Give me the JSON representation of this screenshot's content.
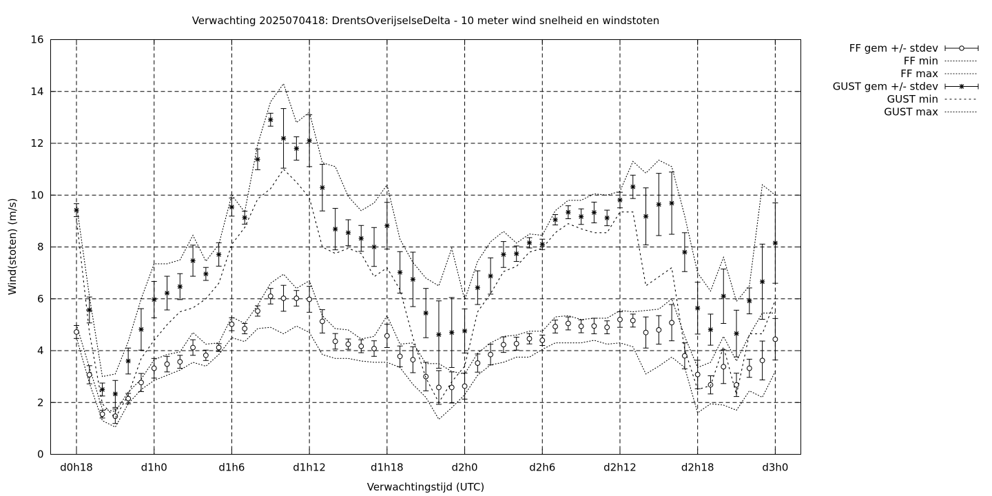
{
  "chart_data": {
    "type": "line",
    "title": "Verwachting 2025070418: DrentsOverijselseDelta - 10 meter wind snelheid en windstoten",
    "xlabel": "Verwachtingstijd (UTC)",
    "ylabel": "Wind(stoten) (m/s)",
    "ylim": [
      0,
      16
    ],
    "y_ticks": [
      0,
      2,
      4,
      6,
      8,
      10,
      12,
      14,
      16
    ],
    "x_tick_labels": [
      "d0h18",
      "d1h0",
      "d1h6",
      "d1h12",
      "d1h18",
      "d2h0",
      "d2h6",
      "d2h12",
      "d2h18",
      "d3h0"
    ],
    "x_tick_hours": [
      18,
      24,
      30,
      36,
      42,
      48,
      54,
      60,
      66,
      72
    ],
    "grid": true,
    "legend_position": "outside-top-right",
    "x_hours": [
      18,
      19,
      20,
      21,
      22,
      23,
      24,
      25,
      26,
      27,
      28,
      29,
      30,
      31,
      32,
      33,
      34,
      35,
      36,
      37,
      38,
      39,
      40,
      41,
      42,
      43,
      44,
      45,
      46,
      47,
      48,
      49,
      50,
      51,
      52,
      53,
      54,
      55,
      56,
      57,
      58,
      59,
      60,
      61,
      62,
      63,
      64,
      65,
      66,
      67,
      68,
      69,
      70,
      71,
      72
    ],
    "series": [
      {
        "name": "FF gem +/- stdev",
        "marker": "open-circle",
        "style": "errorbars",
        "mean": [
          4.72,
          3.07,
          1.55,
          1.47,
          2.15,
          2.77,
          3.32,
          3.48,
          3.57,
          4.12,
          3.82,
          4.12,
          5.02,
          4.85,
          5.53,
          6.1,
          6.02,
          6.02,
          5.98,
          5.13,
          4.36,
          4.25,
          4.17,
          4.08,
          4.57,
          3.78,
          3.65,
          3.0,
          2.58,
          2.58,
          2.63,
          3.52,
          3.85,
          4.23,
          4.27,
          4.46,
          4.4,
          4.93,
          5.05,
          4.94,
          4.95,
          4.9,
          5.2,
          5.16,
          4.7,
          4.8,
          5.08,
          3.8,
          3.08,
          2.68,
          3.38,
          2.68,
          3.32,
          3.62,
          4.44
        ],
        "stdev": [
          0.25,
          0.35,
          0.15,
          0.28,
          0.2,
          0.35,
          0.38,
          0.3,
          0.25,
          0.3,
          0.2,
          0.15,
          0.25,
          0.2,
          0.2,
          0.3,
          0.5,
          0.3,
          0.5,
          0.45,
          0.3,
          0.2,
          0.25,
          0.3,
          0.45,
          0.4,
          0.5,
          0.55,
          0.65,
          0.6,
          0.5,
          0.35,
          0.4,
          0.3,
          0.25,
          0.2,
          0.2,
          0.25,
          0.25,
          0.25,
          0.3,
          0.25,
          0.3,
          0.25,
          0.6,
          0.55,
          0.7,
          0.5,
          0.55,
          0.35,
          0.65,
          0.45,
          0.35,
          0.75,
          0.8
        ]
      },
      {
        "name": "FF min",
        "style": "dotted",
        "values": [
          4.5,
          2.75,
          1.3,
          1.05,
          1.95,
          2.5,
          2.85,
          3.05,
          3.25,
          3.55,
          3.4,
          3.85,
          4.5,
          4.35,
          4.85,
          4.9,
          4.65,
          4.95,
          4.7,
          3.85,
          3.7,
          3.7,
          3.6,
          3.55,
          3.55,
          3.35,
          2.7,
          2.2,
          1.35,
          1.8,
          2.3,
          3.05,
          3.45,
          3.55,
          3.75,
          3.75,
          4.05,
          4.3,
          4.3,
          4.3,
          4.4,
          4.25,
          4.3,
          4.15,
          3.1,
          3.4,
          3.75,
          3.35,
          1.6,
          1.95,
          1.9,
          1.7,
          2.45,
          2.2,
          3.2
        ]
      },
      {
        "name": "FF max",
        "style": "dotted",
        "values": [
          5.0,
          3.35,
          1.75,
          1.65,
          2.4,
          2.9,
          3.65,
          3.85,
          3.95,
          4.7,
          4.25,
          4.3,
          5.3,
          5.05,
          5.75,
          6.6,
          6.95,
          6.4,
          6.7,
          5.35,
          4.85,
          4.8,
          4.45,
          4.55,
          5.35,
          4.25,
          4.3,
          3.5,
          3.5,
          3.2,
          3.1,
          3.9,
          4.3,
          4.55,
          4.6,
          4.75,
          4.75,
          5.3,
          5.35,
          5.2,
          5.25,
          5.25,
          5.55,
          5.5,
          5.55,
          5.6,
          6.0,
          4.55,
          3.35,
          3.55,
          4.55,
          3.6,
          4.6,
          5.45,
          5.45
        ]
      },
      {
        "name": "GUST gem +/- stdev",
        "marker": "star",
        "style": "errorbars",
        "mean": [
          9.42,
          5.57,
          2.5,
          2.33,
          3.6,
          4.82,
          5.97,
          6.22,
          6.47,
          7.47,
          6.96,
          7.71,
          9.54,
          9.13,
          11.38,
          12.91,
          12.19,
          11.8,
          12.1,
          10.29,
          8.69,
          8.55,
          8.33,
          8.0,
          8.82,
          7.02,
          6.75,
          5.45,
          4.62,
          4.7,
          4.76,
          6.43,
          6.88,
          7.71,
          7.74,
          8.16,
          8.1,
          9.05,
          9.34,
          9.17,
          9.33,
          9.12,
          9.81,
          10.32,
          9.18,
          9.64,
          9.69,
          7.8,
          5.64,
          4.81,
          6.1,
          4.66,
          5.92,
          6.66,
          8.15
        ],
        "stdev": [
          0.25,
          0.5,
          0.25,
          0.52,
          0.5,
          0.8,
          0.7,
          0.65,
          0.5,
          0.6,
          0.25,
          0.45,
          0.35,
          0.25,
          0.4,
          0.25,
          1.15,
          0.45,
          1.0,
          0.9,
          0.8,
          0.5,
          0.5,
          0.75,
          0.9,
          0.8,
          1.05,
          0.95,
          1.3,
          1.35,
          0.85,
          0.65,
          0.7,
          0.5,
          0.3,
          0.2,
          0.2,
          0.2,
          0.25,
          0.3,
          0.4,
          0.3,
          0.3,
          0.45,
          1.1,
          1.2,
          1.2,
          0.75,
          1.0,
          0.6,
          1.05,
          0.9,
          0.5,
          1.45,
          1.55
        ]
      },
      {
        "name": "GUST min",
        "style": "dotted",
        "values": [
          9.1,
          4.7,
          1.95,
          1.4,
          2.3,
          3.7,
          4.4,
          5.0,
          5.5,
          5.65,
          6.0,
          6.6,
          8.1,
          8.75,
          9.85,
          10.25,
          11.0,
          10.5,
          9.9,
          8.0,
          7.75,
          7.95,
          7.75,
          6.85,
          7.2,
          6.35,
          4.5,
          2.95,
          2.0,
          2.8,
          3.4,
          5.5,
          6.2,
          7.05,
          7.25,
          7.8,
          7.95,
          8.55,
          8.9,
          8.7,
          8.55,
          8.55,
          9.35,
          9.35,
          6.5,
          6.85,
          7.2,
          4.05,
          2.5,
          2.65,
          4.15,
          2.3,
          4.65,
          4.65,
          5.95
        ]
      },
      {
        "name": "GUST max",
        "style": "dotted",
        "values": [
          9.65,
          6.1,
          3.0,
          3.1,
          4.35,
          6.0,
          7.35,
          7.35,
          7.5,
          8.45,
          7.45,
          8.1,
          10.0,
          9.35,
          11.95,
          13.6,
          14.3,
          12.8,
          13.2,
          11.25,
          11.1,
          9.95,
          9.4,
          9.7,
          10.4,
          8.3,
          7.4,
          6.8,
          6.5,
          7.95,
          5.95,
          7.45,
          8.2,
          8.6,
          8.15,
          8.5,
          8.45,
          9.4,
          9.8,
          9.8,
          10.05,
          10.0,
          10.15,
          11.3,
          10.85,
          11.35,
          11.1,
          9.2,
          7.0,
          6.3,
          7.6,
          5.9,
          6.5,
          10.4,
          10.0
        ]
      }
    ]
  }
}
